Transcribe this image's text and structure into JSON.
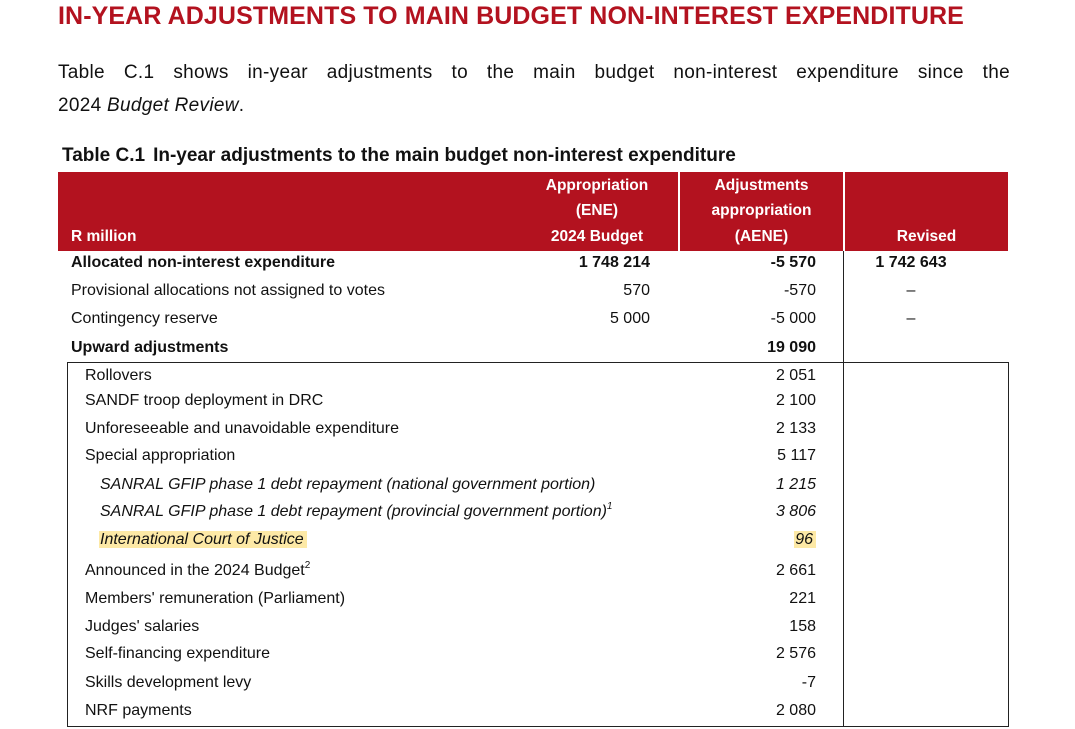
{
  "heading": "IN-YEAR ADJUSTMENTS TO MAIN BUDGET NON-INTEREST EXPENDITURE",
  "intro": {
    "line1": "Table C.1 shows in-year adjustments to the main budget non-interest expenditure since the",
    "line2_prefix": "2024 ",
    "line2_italic": "Budget Review",
    "line2_suffix": "."
  },
  "table": {
    "caption_id": "Table C.1",
    "caption_title": "In-year adjustments to the main budget non-interest expenditure",
    "header_bg": "#b3121f",
    "columns": {
      "label": "R million",
      "appropriation": [
        "Appropriation",
        "(ENE)",
        "2024 Budget"
      ],
      "adjustments": [
        "Adjustments",
        "appropriation",
        "(AENE)"
      ],
      "revised": "Revised"
    },
    "rows": [
      {
        "label": "Allocated non-interest expenditure",
        "appropriation": "1 748 214",
        "adjustments": "-5 570",
        "revised": "1 742 643",
        "style": "bold"
      },
      {
        "label": "Provisional allocations not assigned to votes",
        "appropriation": "570",
        "adjustments": "-570",
        "revised": "–",
        "style": "plain"
      },
      {
        "label": "Contingency reserve",
        "appropriation": "5 000",
        "adjustments": "-5 000",
        "revised": "–",
        "style": "plain"
      },
      {
        "label": "Upward adjustments",
        "appropriation": "",
        "adjustments": "19 090",
        "revised": "",
        "style": "bold"
      },
      {
        "label": "Rollovers",
        "appropriation": "",
        "adjustments": "2 051",
        "revised": "",
        "style": "indent"
      },
      {
        "label": "SANDF troop deployment in DRC",
        "appropriation": "",
        "adjustments": "2 100",
        "revised": "",
        "style": "indent"
      },
      {
        "label": "Unforeseeable and unavoidable expenditure",
        "appropriation": "",
        "adjustments": "2 133",
        "revised": "",
        "style": "indent"
      },
      {
        "label": "Special appropriation",
        "appropriation": "",
        "adjustments": "5 117",
        "revised": "",
        "style": "indent"
      },
      {
        "label": "SANRAL GFIP phase 1 debt repayment (national government portion)",
        "appropriation": "",
        "adjustments": "1 215",
        "revised": "",
        "style": "sub"
      },
      {
        "label": "SANRAL GFIP phase 1 debt repayment (provincial government portion)",
        "footnote": "1",
        "appropriation": "",
        "adjustments": "3 806",
        "revised": "",
        "style": "sub"
      },
      {
        "label": "International Court of Justice",
        "appropriation": "",
        "adjustments": "96",
        "revised": "",
        "style": "sub",
        "highlight": "#fde9a6"
      },
      {
        "label": "Announced in the 2024 Budget",
        "footnote": "2",
        "appropriation": "",
        "adjustments": "2 661",
        "revised": "",
        "style": "indent"
      },
      {
        "label": "Members' remuneration (Parliament)",
        "appropriation": "",
        "adjustments": "221",
        "revised": "",
        "style": "indent"
      },
      {
        "label": "Judges' salaries",
        "appropriation": "",
        "adjustments": "158",
        "revised": "",
        "style": "indent"
      },
      {
        "label": "Self-financing expenditure",
        "appropriation": "",
        "adjustments": "2 576",
        "revised": "",
        "style": "indent"
      },
      {
        "label": "Skills development levy",
        "appropriation": "",
        "adjustments": "-7",
        "revised": "",
        "style": "indent"
      },
      {
        "label": "NRF payments",
        "appropriation": "",
        "adjustments": "2 080",
        "revised": "",
        "style": "indent"
      }
    ]
  }
}
